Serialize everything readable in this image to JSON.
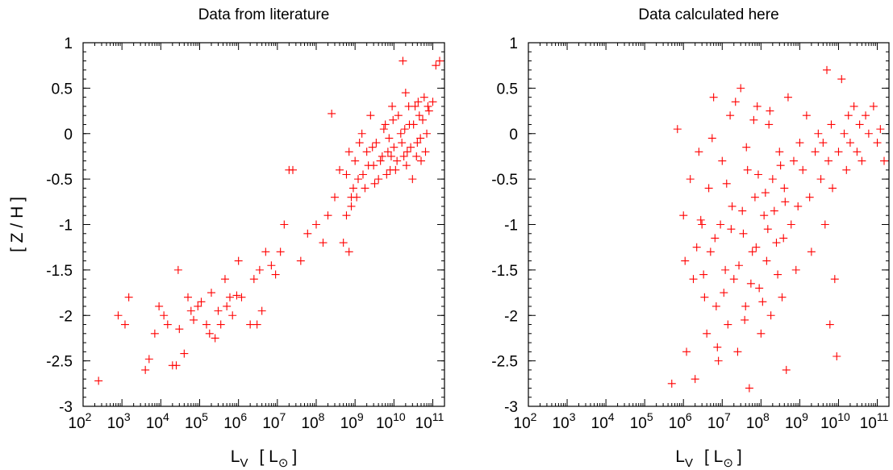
{
  "chart_data": [
    {
      "type": "scatter",
      "title": "Data from literature",
      "xlabel": "L",
      "xlabel_sub": "V",
      "xlabel_unit": "[ L",
      "xlabel_unit_sub": "⊙",
      "xlabel_unit_close": "]",
      "ylabel": "[ Z / H ]",
      "xscale": "log",
      "xlim": [
        100,
        200000000000
      ],
      "ylim": [
        -3,
        1
      ],
      "x_ticks": [
        {
          "base": "10",
          "exp": "2"
        },
        {
          "base": "10",
          "exp": "3"
        },
        {
          "base": "10",
          "exp": "4"
        },
        {
          "base": "10",
          "exp": "5"
        },
        {
          "base": "10",
          "exp": "6"
        },
        {
          "base": "10",
          "exp": "7"
        },
        {
          "base": "10",
          "exp": "8"
        },
        {
          "base": "10",
          "exp": "9"
        },
        {
          "base": "10",
          "exp": "10"
        },
        {
          "base": "10",
          "exp": "11"
        }
      ],
      "y_ticks": [
        "1",
        "0.5",
        "0",
        "-0.5",
        "-1",
        "-1.5",
        "-2",
        "-2.5",
        "-3"
      ],
      "marker": "+",
      "color": "#ff0000",
      "points": [
        [
          250,
          -2.72
        ],
        [
          800,
          -2.0
        ],
        [
          1200,
          -2.1
        ],
        [
          1500,
          -1.8
        ],
        [
          4000,
          -2.6
        ],
        [
          5000,
          -2.48
        ],
        [
          7000,
          -2.2
        ],
        [
          9000,
          -1.9
        ],
        [
          12000,
          -2.0
        ],
        [
          15000,
          -2.1
        ],
        [
          20000,
          -2.55
        ],
        [
          25000,
          -2.55
        ],
        [
          28000,
          -1.5
        ],
        [
          30000,
          -2.15
        ],
        [
          40000,
          -2.42
        ],
        [
          50000,
          -1.8
        ],
        [
          60000,
          -1.95
        ],
        [
          70000,
          -2.05
        ],
        [
          90000,
          -1.9
        ],
        [
          110000,
          -1.85
        ],
        [
          150000,
          -2.1
        ],
        [
          180000,
          -2.2
        ],
        [
          200000,
          -1.75
        ],
        [
          250000,
          -2.25
        ],
        [
          300000,
          -1.95
        ],
        [
          350000,
          -2.1
        ],
        [
          450000,
          -1.6
        ],
        [
          500000,
          -1.9
        ],
        [
          600000,
          -1.8
        ],
        [
          700000,
          -2.0
        ],
        [
          900000,
          -1.78
        ],
        [
          1000000,
          -1.4
        ],
        [
          1200000,
          -1.8
        ],
        [
          2000000,
          -2.1
        ],
        [
          2500000,
          -1.6
        ],
        [
          3000000,
          -2.1
        ],
        [
          3500000,
          -1.5
        ],
        [
          4000000,
          -1.95
        ],
        [
          5000000,
          -1.3
        ],
        [
          7000000,
          -1.45
        ],
        [
          9000000,
          -1.55
        ],
        [
          12000000,
          -1.3
        ],
        [
          20000000,
          -0.4
        ],
        [
          25000000,
          -0.4
        ],
        [
          15000000,
          -1.0
        ],
        [
          40000000,
          -1.4
        ],
        [
          60000000,
          -1.1
        ],
        [
          100000000,
          -1.0
        ],
        [
          150000000,
          -1.2
        ],
        [
          200000000,
          -0.9
        ],
        [
          250000000,
          0.22
        ],
        [
          300000000,
          -0.7
        ],
        [
          400000000,
          -0.4
        ],
        [
          500000000,
          -1.2
        ],
        [
          600000000,
          -0.9
        ],
        [
          700000000,
          -1.3
        ],
        [
          800000000,
          -0.7
        ],
        [
          900000000,
          -0.6
        ],
        [
          1000000000,
          -0.3
        ],
        [
          1200000000,
          -0.5
        ],
        [
          1500000000,
          0.0
        ],
        [
          2000000000,
          -0.2
        ],
        [
          2500000000,
          0.2
        ],
        [
          3000000000,
          -0.35
        ],
        [
          3500000000,
          -0.1
        ],
        [
          4000000000,
          -0.5
        ],
        [
          5000000000,
          -0.25
        ],
        [
          6000000000,
          0.1
        ],
        [
          7000000000,
          -0.2
        ],
        [
          8000000000,
          -0.4
        ],
        [
          9000000000,
          0.3
        ],
        [
          10000000000,
          -0.15
        ],
        [
          12000000000,
          -0.3
        ],
        [
          15000000000,
          0.0
        ],
        [
          18000000000,
          -0.25
        ],
        [
          20000000000,
          0.45
        ],
        [
          22000000000,
          -0.2
        ],
        [
          25000000000,
          0.1
        ],
        [
          30000000000,
          -0.5
        ],
        [
          35000000000,
          0.3
        ],
        [
          40000000000,
          -0.1
        ],
        [
          45000000000,
          0.2
        ],
        [
          50000000000,
          -0.3
        ],
        [
          60000000000,
          0.4
        ],
        [
          70000000000,
          0.0
        ],
        [
          80000000000,
          0.25
        ],
        [
          100000000000,
          0.35
        ],
        [
          120000000000,
          0.75
        ],
        [
          150000000000,
          0.8
        ],
        [
          17000000000,
          0.8
        ],
        [
          600000000,
          -0.45
        ],
        [
          700000000,
          -0.2
        ],
        [
          800000000,
          -0.8
        ],
        [
          1100000000,
          -0.7
        ],
        [
          1300000000,
          -0.1
        ],
        [
          1600000000,
          -0.45
        ],
        [
          1800000000,
          -0.6
        ],
        [
          2200000000,
          -0.35
        ],
        [
          2800000000,
          -0.15
        ],
        [
          3200000000,
          -0.55
        ],
        [
          4500000000,
          -0.3
        ],
        [
          5500000000,
          0.05
        ],
        [
          6500000000,
          -0.45
        ],
        [
          7500000000,
          -0.05
        ],
        [
          8500000000,
          -0.25
        ],
        [
          9500000000,
          0.15
        ],
        [
          11000000000,
          -0.4
        ],
        [
          13000000000,
          0.2
        ],
        [
          16000000000,
          -0.1
        ],
        [
          19000000000,
          0.05
        ],
        [
          21000000000,
          -0.35
        ],
        [
          24000000000,
          0.3
        ],
        [
          27000000000,
          -0.15
        ],
        [
          32000000000,
          0.1
        ],
        [
          38000000000,
          -0.25
        ],
        [
          42000000000,
          0.35
        ],
        [
          48000000000,
          -0.05
        ],
        [
          55000000000,
          0.15
        ],
        [
          65000000000,
          -0.2
        ],
        [
          75000000000,
          0.3
        ]
      ]
    },
    {
      "type": "scatter",
      "title": "Data calculated here",
      "xlabel": "L",
      "xlabel_sub": "V",
      "xlabel_unit": "[ L",
      "xlabel_unit_sub": "⊙",
      "xlabel_unit_close": "]",
      "xscale": "log",
      "xlim": [
        100,
        200000000000
      ],
      "ylim": [
        -3,
        1
      ],
      "x_ticks": [
        {
          "base": "10",
          "exp": "2"
        },
        {
          "base": "10",
          "exp": "3"
        },
        {
          "base": "10",
          "exp": "4"
        },
        {
          "base": "10",
          "exp": "5"
        },
        {
          "base": "10",
          "exp": "6"
        },
        {
          "base": "10",
          "exp": "7"
        },
        {
          "base": "10",
          "exp": "8"
        },
        {
          "base": "10",
          "exp": "9"
        },
        {
          "base": "10",
          "exp": "10"
        },
        {
          "base": "10",
          "exp": "11"
        }
      ],
      "y_ticks": [
        "1",
        "0.5",
        "0",
        "-0.5",
        "-1",
        "-1.5",
        "-2",
        "-2.5",
        "-3"
      ],
      "marker": "+",
      "color": "#ff0000",
      "points": [
        [
          500000,
          -2.75
        ],
        [
          700000,
          0.05
        ],
        [
          1000000,
          -0.9
        ],
        [
          1100000,
          -1.4
        ],
        [
          1200000,
          -2.4
        ],
        [
          1500000,
          -0.5
        ],
        [
          1800000,
          -1.6
        ],
        [
          2000000,
          -2.7
        ],
        [
          2500000,
          -0.2
        ],
        [
          3000000,
          -1.0
        ],
        [
          3500000,
          -1.8
        ],
        [
          4000000,
          -2.2
        ],
        [
          4500000,
          -0.6
        ],
        [
          5000000,
          -1.3
        ],
        [
          6000000,
          0.4
        ],
        [
          7000000,
          -1.9
        ],
        [
          8000000,
          -2.5
        ],
        [
          9000000,
          -1.0
        ],
        [
          10000000,
          -0.3
        ],
        [
          12000000,
          -1.5
        ],
        [
          14000000,
          -2.1
        ],
        [
          16000000,
          0.2
        ],
        [
          18000000,
          -0.8
        ],
        [
          20000000,
          -1.6
        ],
        [
          25000000,
          -2.4
        ],
        [
          30000000,
          0.5
        ],
        [
          35000000,
          -1.1
        ],
        [
          40000000,
          -1.9
        ],
        [
          45000000,
          -0.4
        ],
        [
          50000000,
          -2.8
        ],
        [
          60000000,
          -1.3
        ],
        [
          70000000,
          -0.7
        ],
        [
          80000000,
          0.3
        ],
        [
          90000000,
          -1.7
        ],
        [
          100000000,
          -2.2
        ],
        [
          120000000,
          -0.9
        ],
        [
          140000000,
          -1.4
        ],
        [
          160000000,
          0.1
        ],
        [
          180000000,
          -2.0
        ],
        [
          200000000,
          -0.5
        ],
        [
          250000000,
          -1.2
        ],
        [
          300000000,
          -0.2
        ],
        [
          350000000,
          -1.8
        ],
        [
          400000000,
          -0.6
        ],
        [
          450000000,
          -2.6
        ],
        [
          500000000,
          0.4
        ],
        [
          600000000,
          -1.0
        ],
        [
          700000000,
          -0.3
        ],
        [
          800000000,
          -1.5
        ],
        [
          900000000,
          -0.8
        ],
        [
          1000000000,
          -0.1
        ],
        [
          1200000000,
          -0.4
        ],
        [
          1500000000,
          0.2
        ],
        [
          1800000000,
          -0.7
        ],
        [
          2000000000,
          -1.3
        ],
        [
          2500000000,
          -0.2
        ],
        [
          3000000000,
          0.0
        ],
        [
          3500000000,
          -0.5
        ],
        [
          4000000000,
          -0.1
        ],
        [
          4500000000,
          -1.0
        ],
        [
          5000000000,
          0.7
        ],
        [
          5500000000,
          -0.3
        ],
        [
          6000000000,
          -2.1
        ],
        [
          6500000000,
          0.1
        ],
        [
          7000000000,
          -0.6
        ],
        [
          8000000000,
          -1.6
        ],
        [
          9000000000,
          -2.45
        ],
        [
          10000000000,
          -0.2
        ],
        [
          12000000000,
          0.6
        ],
        [
          14000000000,
          0.0
        ],
        [
          16000000000,
          -0.4
        ],
        [
          18000000000,
          0.2
        ],
        [
          20000000000,
          -0.1
        ],
        [
          25000000000,
          0.3
        ],
        [
          30000000000,
          -0.2
        ],
        [
          35000000000,
          0.1
        ],
        [
          40000000000,
          -0.3
        ],
        [
          50000000000,
          0.2
        ],
        [
          60000000000,
          0.0
        ],
        [
          80000000000,
          0.3
        ],
        [
          100000000000,
          -0.1
        ],
        [
          120000000000,
          0.05
        ],
        [
          150000000000,
          -0.3
        ],
        [
          2200000,
          -1.25
        ],
        [
          2800000,
          -0.95
        ],
        [
          3300000,
          -1.55
        ],
        [
          5500000,
          -0.05
        ],
        [
          6500000,
          -1.15
        ],
        [
          7500000,
          -2.35
        ],
        [
          11000000,
          -1.75
        ],
        [
          13000000,
          -0.55
        ],
        [
          17000000,
          -1.05
        ],
        [
          22000000,
          0.35
        ],
        [
          27000000,
          -1.45
        ],
        [
          33000000,
          -0.85
        ],
        [
          38000000,
          -2.05
        ],
        [
          42000000,
          -0.15
        ],
        [
          55000000,
          -1.65
        ],
        [
          65000000,
          0.15
        ],
        [
          75000000,
          -1.25
        ],
        [
          85000000,
          -0.45
        ],
        [
          110000000,
          -1.85
        ],
        [
          130000000,
          -0.65
        ],
        [
          150000000,
          -1.05
        ],
        [
          170000000,
          0.25
        ],
        [
          220000000,
          -0.85
        ],
        [
          270000000,
          -1.55
        ],
        [
          320000000,
          -0.35
        ],
        [
          380000000,
          -1.15
        ],
        [
          420000000,
          -0.75
        ]
      ]
    }
  ]
}
